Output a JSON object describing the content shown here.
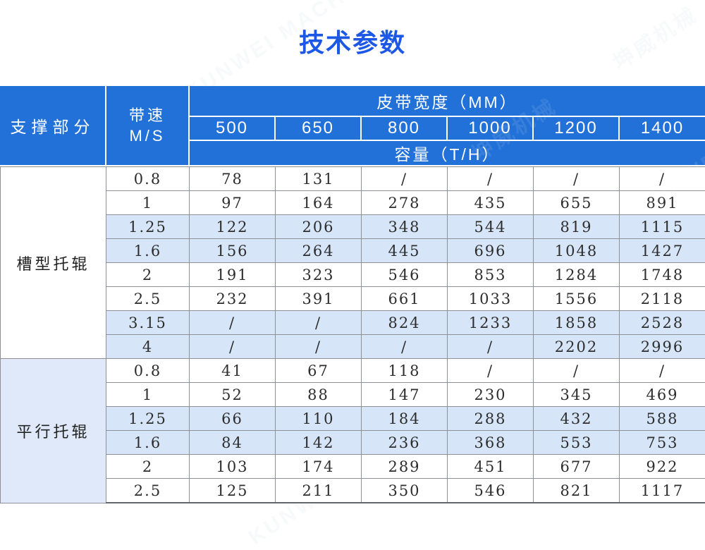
{
  "page": {
    "title": "技术参数"
  },
  "colors": {
    "title_blue": "#1c57e5",
    "header_blue": "#2271d8",
    "alt_row": "#d6e5f7",
    "section_bg": "#dfe9f9"
  },
  "labels": {
    "support": "支撑部分",
    "speed_lines": [
      "带速",
      "M/S"
    ],
    "belt_width": "皮带宽度（MM）",
    "capacity": "容量（T/H）"
  },
  "watermark": {
    "cn": "坤威机械",
    "en": "KUNWEI MACHINE"
  },
  "chart_data": {
    "type": "table",
    "title": "技术参数",
    "row_group_label": "支撑部分",
    "speed_label": "带速 M/S",
    "column_group_label": "皮带宽度（MM）",
    "value_label": "容量（T/H）",
    "columns": [
      "500",
      "650",
      "800",
      "1000",
      "1200",
      "1400"
    ],
    "sections": [
      {
        "label": "槽型托辊",
        "highlight": false,
        "rows": [
          {
            "speed": "0.8",
            "alt": false,
            "values": [
              "78",
              "131",
              "/",
              "/",
              "/",
              "/"
            ]
          },
          {
            "speed": "1",
            "alt": false,
            "values": [
              "97",
              "164",
              "278",
              "435",
              "655",
              "891"
            ]
          },
          {
            "speed": "1.25",
            "alt": true,
            "values": [
              "122",
              "206",
              "348",
              "544",
              "819",
              "1115"
            ]
          },
          {
            "speed": "1.6",
            "alt": true,
            "values": [
              "156",
              "264",
              "445",
              "696",
              "1048",
              "1427"
            ]
          },
          {
            "speed": "2",
            "alt": false,
            "values": [
              "191",
              "323",
              "546",
              "853",
              "1284",
              "1748"
            ]
          },
          {
            "speed": "2.5",
            "alt": false,
            "values": [
              "232",
              "391",
              "661",
              "1033",
              "1556",
              "2118"
            ]
          },
          {
            "speed": "3.15",
            "alt": true,
            "values": [
              "/",
              "/",
              "824",
              "1233",
              "1858",
              "2528"
            ]
          },
          {
            "speed": "4",
            "alt": true,
            "values": [
              "/",
              "/",
              "/",
              "/",
              "2202",
              "2996"
            ]
          }
        ]
      },
      {
        "label": "平行托辊",
        "highlight": true,
        "rows": [
          {
            "speed": "0.8",
            "alt": false,
            "values": [
              "41",
              "67",
              "118",
              "/",
              "/",
              "/"
            ]
          },
          {
            "speed": "1",
            "alt": false,
            "values": [
              "52",
              "88",
              "147",
              "230",
              "345",
              "469"
            ]
          },
          {
            "speed": "1.25",
            "alt": true,
            "values": [
              "66",
              "110",
              "184",
              "288",
              "432",
              "588"
            ]
          },
          {
            "speed": "1.6",
            "alt": true,
            "values": [
              "84",
              "142",
              "236",
              "368",
              "553",
              "753"
            ]
          },
          {
            "speed": "2",
            "alt": false,
            "values": [
              "103",
              "174",
              "289",
              "451",
              "677",
              "922"
            ]
          },
          {
            "speed": "2.5",
            "alt": false,
            "values": [
              "125",
              "211",
              "350",
              "546",
              "821",
              "1117"
            ]
          }
        ]
      }
    ]
  }
}
